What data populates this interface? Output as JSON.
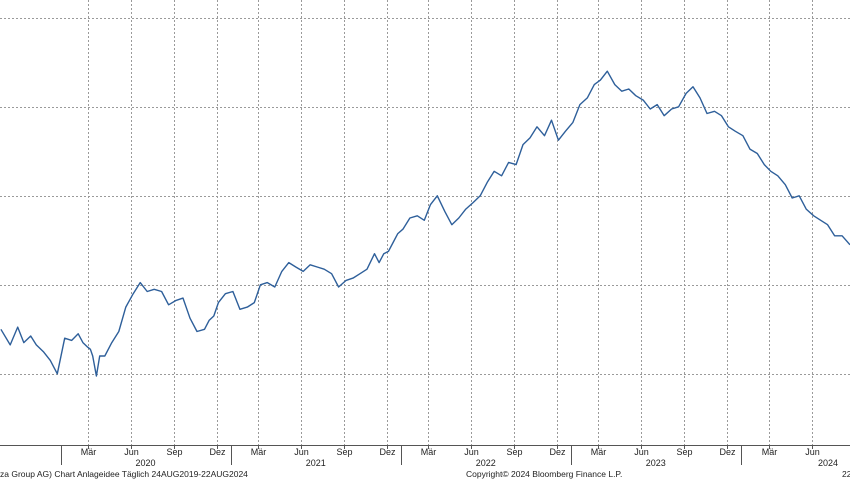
{
  "footer": {
    "left": "za Group AG) Chart Anlageidee  Täglich 24AUG2019-22AUG2024",
    "right": "Copyright© 2024 Bloomberg Finance L.P.",
    "edge": "22"
  },
  "chart_data": {
    "type": "line",
    "title": "",
    "xlabel": "",
    "ylabel": "",
    "grid": true,
    "line_color": "#2e5f9a",
    "grid_color": "#9a9a9a",
    "month_ticks": [
      "Mär",
      "Jun",
      "Sep",
      "Dez",
      "Mär",
      "Jun",
      "Sep",
      "Dez",
      "Mär",
      "Jun",
      "Sep",
      "Dez",
      "Mär",
      "Jun",
      "Sep",
      "Dez",
      "Mär",
      "Jun"
    ],
    "year_labels": [
      "2020",
      "2021",
      "2022",
      "2023",
      "2024"
    ],
    "series": [
      {
        "x": [
          "2019-08-26",
          "2019-09-15",
          "2019-10-01",
          "2019-10-14",
          "2019-10-29",
          "2019-11-10",
          "2019-11-25",
          "2019-12-10",
          "2019-12-25",
          "2020-01-10",
          "2020-01-25",
          "2020-02-08",
          "2020-02-18",
          "2020-02-28",
          "2020-03-05",
          "2020-03-10",
          "2020-03-18",
          "2020-03-25",
          "2020-04-05",
          "2020-04-20",
          "2020-05-05",
          "2020-05-20",
          "2020-06-05",
          "2020-06-20",
          "2020-07-05",
          "2020-07-20",
          "2020-08-05",
          "2020-08-20",
          "2020-09-05",
          "2020-09-20",
          "2020-10-05",
          "2020-10-20",
          "2020-11-05",
          "2020-11-15",
          "2020-11-25",
          "2020-12-05",
          "2020-12-20",
          "2021-01-05",
          "2021-01-20",
          "2021-02-05",
          "2021-02-20",
          "2021-03-05",
          "2021-03-20",
          "2021-04-05",
          "2021-04-20",
          "2021-05-05",
          "2021-05-20",
          "2021-06-05",
          "2021-06-20",
          "2021-07-05",
          "2021-07-20",
          "2021-08-05",
          "2021-08-20",
          "2021-09-05",
          "2021-09-20",
          "2021-10-05",
          "2021-10-20",
          "2021-11-05",
          "2021-11-15",
          "2021-11-25",
          "2021-12-05",
          "2021-12-15",
          "2021-12-25",
          "2022-01-05",
          "2022-01-20",
          "2022-02-05",
          "2022-02-20",
          "2022-03-05",
          "2022-03-20",
          "2022-04-05",
          "2022-04-20",
          "2022-05-05",
          "2022-05-20",
          "2022-06-05",
          "2022-06-20",
          "2022-07-05",
          "2022-07-20",
          "2022-08-05",
          "2022-08-20",
          "2022-09-05",
          "2022-09-20",
          "2022-10-05",
          "2022-10-20",
          "2022-11-05",
          "2022-11-20",
          "2022-12-05",
          "2022-12-20",
          "2023-01-05",
          "2023-01-20",
          "2023-02-05",
          "2023-02-20",
          "2023-03-05",
          "2023-03-20",
          "2023-04-05",
          "2023-04-20",
          "2023-05-05",
          "2023-05-20",
          "2023-06-05",
          "2023-06-20",
          "2023-07-05",
          "2023-07-20",
          "2023-08-05",
          "2023-08-20",
          "2023-09-05",
          "2023-09-20",
          "2023-10-05",
          "2023-10-20",
          "2023-11-05",
          "2023-11-20",
          "2023-12-05",
          "2023-12-20",
          "2024-01-05",
          "2024-01-20",
          "2024-02-05",
          "2024-02-20",
          "2024-03-05",
          "2024-03-20",
          "2024-04-05",
          "2024-04-20",
          "2024-05-05",
          "2024-05-20",
          "2024-06-05",
          "2024-06-20",
          "2024-07-05",
          "2024-07-20",
          "2024-08-05",
          "2024-08-22"
        ],
        "values": [
          2.6,
          2.25,
          2.65,
          2.3,
          2.45,
          2.25,
          2.1,
          1.9,
          1.6,
          2.4,
          2.35,
          2.5,
          2.3,
          2.2,
          2.15,
          2.0,
          1.55,
          2.0,
          2.0,
          2.3,
          2.55,
          3.1,
          3.4,
          3.65,
          3.45,
          3.5,
          3.45,
          3.15,
          3.25,
          3.3,
          2.85,
          2.55,
          2.6,
          2.8,
          2.9,
          3.2,
          3.4,
          3.45,
          3.05,
          3.1,
          3.2,
          3.6,
          3.65,
          3.55,
          3.9,
          4.1,
          4.0,
          3.9,
          4.05,
          4.0,
          3.95,
          3.85,
          3.55,
          3.7,
          3.75,
          3.85,
          3.95,
          4.3,
          4.1,
          4.3,
          4.35,
          4.55,
          4.75,
          4.85,
          5.1,
          5.15,
          5.05,
          5.4,
          5.6,
          5.25,
          4.95,
          5.1,
          5.3,
          5.45,
          5.6,
          5.9,
          6.15,
          6.05,
          6.35,
          6.3,
          6.75,
          6.9,
          7.15,
          6.95,
          7.3,
          6.85,
          7.05,
          7.25,
          7.65,
          7.8,
          8.1,
          8.2,
          8.4,
          8.1,
          7.95,
          8.0,
          7.85,
          7.75,
          7.55,
          7.65,
          7.4,
          7.55,
          7.6,
          7.9,
          8.05,
          7.8,
          7.45,
          7.5,
          7.4,
          7.15,
          7.05,
          6.95,
          6.65,
          6.55,
          6.3,
          6.15,
          6.05,
          5.85,
          5.55,
          5.6,
          5.3,
          5.15,
          5.05,
          4.95,
          4.7,
          4.7,
          4.5
        ]
      }
    ]
  }
}
